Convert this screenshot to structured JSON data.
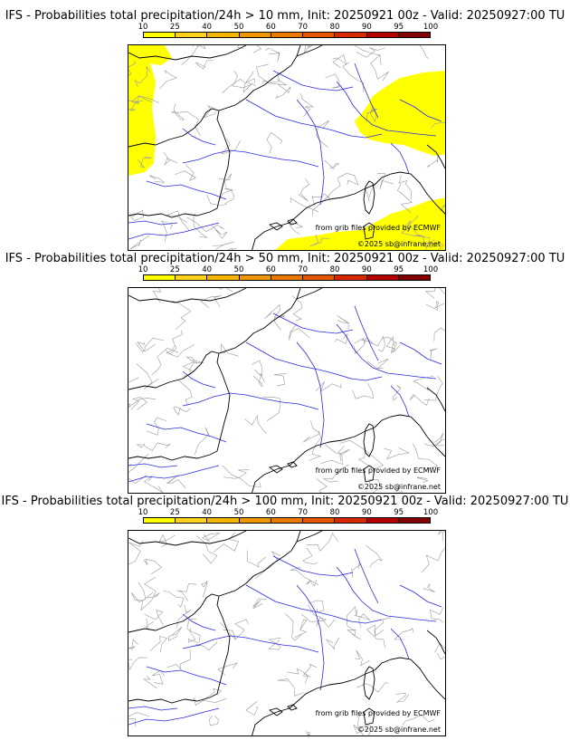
{
  "colorbar": {
    "ticks": [
      "10",
      "25",
      "40",
      "50",
      "60",
      "70",
      "80",
      "90",
      "95",
      "100"
    ],
    "colors": [
      "#ffff00",
      "#ffd21e",
      "#f5b400",
      "#f09600",
      "#eb7800",
      "#e65500",
      "#d72800",
      "#b40000",
      "#820000"
    ]
  },
  "panels": [
    {
      "title": "IFS - Probabilities total precipitation/24h > 10 mm, Init: 20250921 00z - Valid: 20250927:00 TU",
      "credit": "from grib files provided by ECMWF",
      "copyright": "©2025 sb@infrane.net",
      "has_precip": true
    },
    {
      "title": "IFS - Probabilities total precipitation/24h > 50 mm, Init: 20250921 00z - Valid: 20250927:00 TU",
      "credit": "from grib files provided by ECMWF",
      "copyright": "©2025 sb@infrane.net",
      "has_precip": false
    },
    {
      "title": "IFS - Probabilities total precipitation/24h > 100 mm, Init: 20250921 00z - Valid: 20250927:00 TU",
      "credit": "from grib files provided by ECMWF",
      "copyright": "©2025 sb@infrane.net",
      "has_precip": false
    }
  ],
  "map_colors": {
    "coast": "#000000",
    "river": "#2a2ae0",
    "border": "#9a9a9a",
    "precip": "#ffff00"
  }
}
